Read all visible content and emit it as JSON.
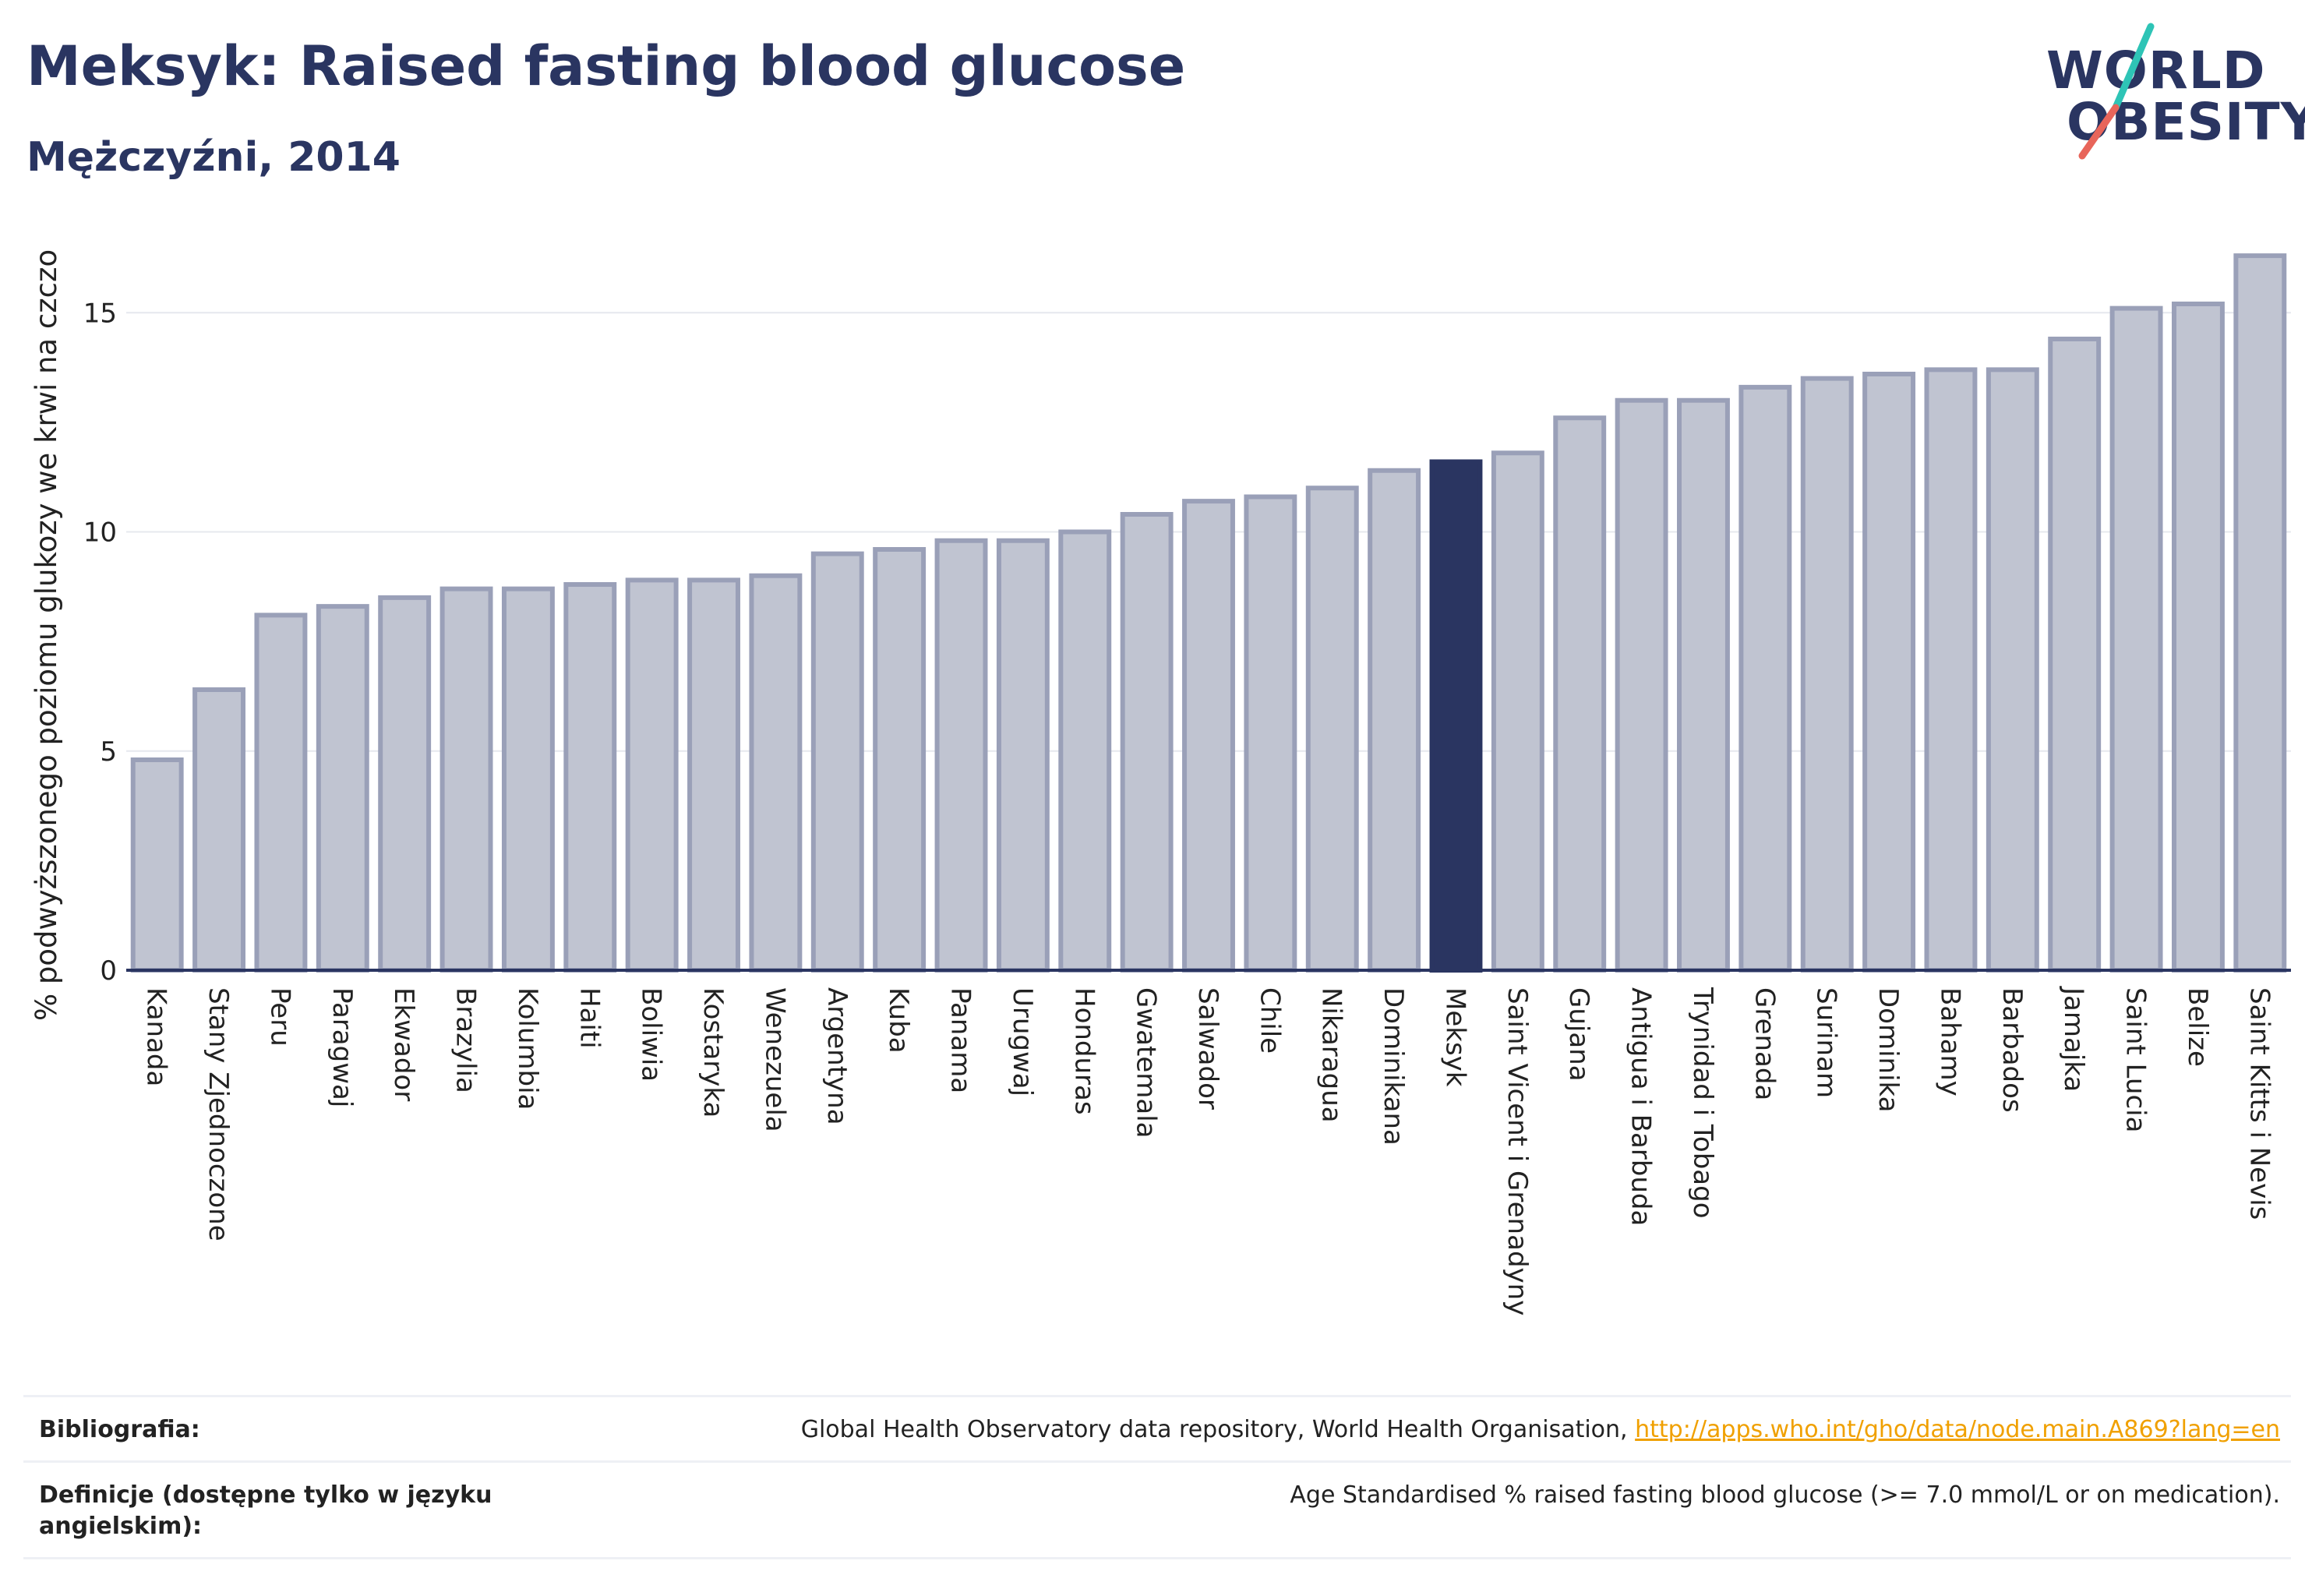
{
  "header": {
    "title": "Meksyk: Raised fasting blood glucose",
    "subtitle": "Mężczyźni, 2014"
  },
  "logo": {
    "line1": "WORLD",
    "line2": "OBESITY",
    "accent_colors": [
      "#2ec4b6",
      "#e8655a"
    ]
  },
  "chart_data": {
    "type": "bar",
    "title": "Meksyk: Raised fasting blood glucose",
    "subtitle": "Mężczyźni, 2014",
    "ylabel": "% podwyższonego poziomu glukozy we krwi na czczo",
    "xlabel": "",
    "ylim": [
      0,
      16.8
    ],
    "yticks": [
      0,
      5,
      10,
      15
    ],
    "grid": true,
    "highlight": "Meksyk",
    "colors": {
      "default_fill": "#c0c4d1",
      "default_stroke": "#9aa0b8",
      "highlight": "#2a3561",
      "axis": "#2a3561",
      "grid": "#e6e8ee"
    },
    "categories": [
      "Kanada",
      "Stany Zjednoczone",
      "Peru",
      "Paragwaj",
      "Ekwador",
      "Brazylia",
      "Kolumbia",
      "Haiti",
      "Boliwia",
      "Kostaryka",
      "Wenezuela",
      "Argentyna",
      "Kuba",
      "Panama",
      "Urugwaj",
      "Honduras",
      "Gwatemala",
      "Salwador",
      "Chile",
      "Nikaragua",
      "Dominikana",
      "Meksyk",
      "Saint Vicent i Grenadyny",
      "Gujana",
      "Antigua i Barbuda",
      "Trynidad i Tobago",
      "Grenada",
      "Surinam",
      "Dominika",
      "Bahamy",
      "Barbados",
      "Jamajka",
      "Saint Lucia",
      "Belize",
      "Saint Kitts i Nevis"
    ],
    "values": [
      4.8,
      6.4,
      8.1,
      8.3,
      8.5,
      8.7,
      8.7,
      8.8,
      8.9,
      8.9,
      9.0,
      9.5,
      9.6,
      9.8,
      9.8,
      10.0,
      10.4,
      10.7,
      10.8,
      11.0,
      11.4,
      11.6,
      11.8,
      12.6,
      13.0,
      13.0,
      13.3,
      13.5,
      13.6,
      13.7,
      13.7,
      14.4,
      15.1,
      15.2,
      16.3
    ]
  },
  "footer": {
    "bibliography_label": "Bibliografia:",
    "bibliography_text": "Global Health Observatory data repository, World Health Organisation,",
    "bibliography_link": "http://apps.who.int/gho/data/node.main.A869?lang=en",
    "definitions_label": "Definicje (dostępne tylko w języku angielskim):",
    "definitions_text": "Age Standardised % raised fasting blood glucose (>= 7.0 mmol/L or on medication)."
  }
}
